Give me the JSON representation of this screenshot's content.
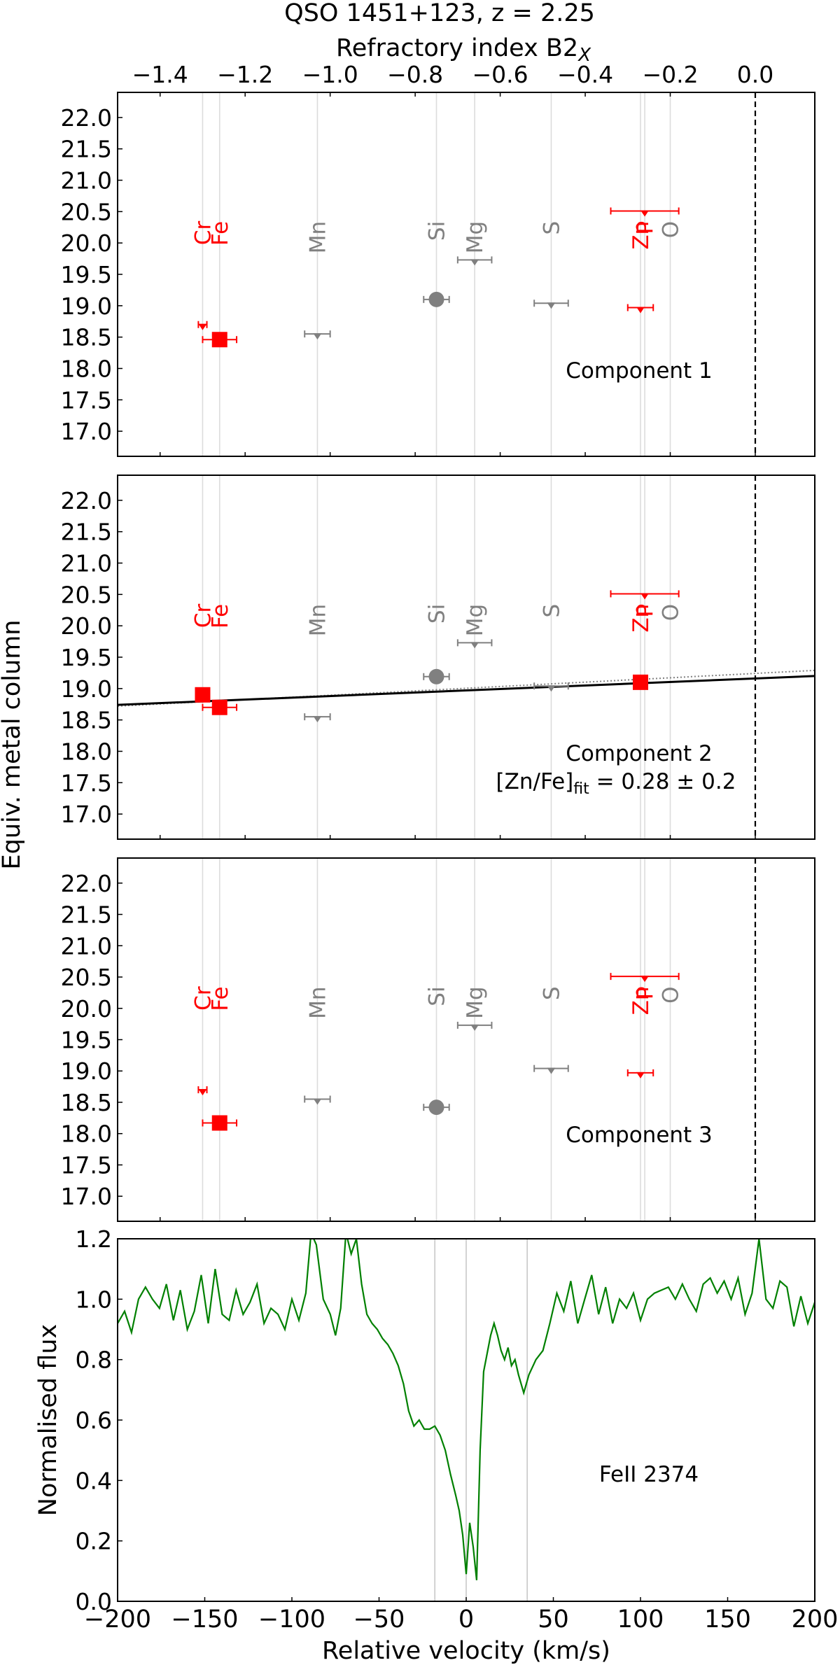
{
  "figure": {
    "title": "QSO 1451+123, z = 2.25",
    "top_axis_label": "Refractory index B2",
    "top_axis_label_sub": "X",
    "y_label_shared": "Equiv. metal column",
    "colors": {
      "depleted": "#ff0000",
      "other": "#808080",
      "flux": "#008000",
      "fit": "#000000",
      "fit_dotted": "#808080"
    }
  },
  "chart_data": [
    {
      "type": "scatter",
      "panel": "Component 1",
      "label": "Component 1",
      "x_axis": {
        "name": "Refractory index B2_X",
        "ticks": [
          -1.4,
          -1.2,
          -1.0,
          -0.8,
          -0.6,
          -0.4,
          -0.2,
          0.0
        ],
        "tick_labels": [
          "−1.4",
          "−1.2",
          "−1.0",
          "−0.8",
          "−0.6",
          "−0.4",
          "−0.2",
          "0.0"
        ],
        "range": [
          -1.5,
          0.14
        ]
      },
      "y_axis": {
        "ticks": [
          17.0,
          17.5,
          18.0,
          18.5,
          19.0,
          19.5,
          20.0,
          20.5,
          21.0,
          21.5,
          22.0
        ],
        "tick_labels": [
          "17.0",
          "17.5",
          "18.0",
          "18.5",
          "19.0",
          "19.5",
          "20.0",
          "20.5",
          "21.0",
          "21.5",
          "22.0"
        ],
        "range": [
          16.6,
          22.4
        ]
      },
      "element_lines": [
        {
          "name": "Cr",
          "x": -1.3,
          "color": "red"
        },
        {
          "name": "Fe",
          "x": -1.26,
          "color": "red"
        },
        {
          "name": "Mn",
          "x": -1.03,
          "color": "gray"
        },
        {
          "name": "Si",
          "x": -0.75,
          "color": "gray"
        },
        {
          "name": "Mg",
          "x": -0.66,
          "color": "gray"
        },
        {
          "name": "S",
          "x": -0.48,
          "color": "gray"
        },
        {
          "name": "Zn",
          "x": -0.27,
          "color": "red"
        },
        {
          "name": "P",
          "x": -0.26,
          "color": "red"
        },
        {
          "name": "O",
          "x": -0.2,
          "color": "gray"
        }
      ],
      "points": [
        {
          "element": "Cr",
          "x": -1.3,
          "y": 18.7,
          "marker": "upper-limit",
          "color": "red",
          "xerr": 0.01
        },
        {
          "element": "Fe",
          "x": -1.26,
          "y": 18.46,
          "marker": "square",
          "color": "red",
          "xerr": 0.04
        },
        {
          "element": "Mn",
          "x": -1.03,
          "y": 18.55,
          "marker": "upper-limit",
          "color": "gray",
          "xerr": 0.03
        },
        {
          "element": "Si",
          "x": -0.75,
          "y": 19.1,
          "marker": "circle",
          "color": "gray",
          "xerr": 0.03
        },
        {
          "element": "Mg",
          "x": -0.66,
          "y": 19.73,
          "marker": "upper-limit",
          "color": "gray",
          "xerr": 0.04
        },
        {
          "element": "S",
          "x": -0.48,
          "y": 19.04,
          "marker": "upper-limit",
          "color": "gray",
          "xerr": 0.04
        },
        {
          "element": "Zn",
          "x": -0.27,
          "y": 18.97,
          "marker": "upper-limit",
          "color": "red",
          "xerr": 0.03
        },
        {
          "element": "P",
          "x": -0.26,
          "y": 20.51,
          "marker": "upper-limit",
          "color": "red",
          "xerr": 0.08
        }
      ]
    },
    {
      "type": "scatter",
      "panel": "Component 2",
      "label": "Component 2",
      "fit_label": "[Zn/Fe]",
      "fit_label_sub": "fit",
      "fit_value": " = 0.28 ± 0.2",
      "x_axis": {
        "ticks": [
          -1.4,
          -1.2,
          -1.0,
          -0.8,
          -0.6,
          -0.4,
          -0.2,
          0.0
        ],
        "range": [
          -1.5,
          0.14
        ]
      },
      "y_axis": {
        "ticks": [
          17.0,
          17.5,
          18.0,
          18.5,
          19.0,
          19.5,
          20.0,
          20.5,
          21.0,
          21.5,
          22.0
        ],
        "tick_labels": [
          "17.0",
          "17.5",
          "18.0",
          "18.5",
          "19.0",
          "19.5",
          "20.0",
          "20.5",
          "21.0",
          "21.5",
          "22.0"
        ],
        "range": [
          16.6,
          22.4
        ]
      },
      "fit_line": {
        "x": [
          -1.5,
          0.14
        ],
        "y": [
          18.74,
          19.2
        ]
      },
      "fit_line_dotted": {
        "x": [
          -1.5,
          0.14
        ],
        "y": [
          18.72,
          19.29
        ]
      },
      "points": [
        {
          "element": "Cr",
          "x": -1.3,
          "y": 18.9,
          "marker": "square",
          "color": "red",
          "xerr": 0.01
        },
        {
          "element": "Fe",
          "x": -1.26,
          "y": 18.7,
          "marker": "square",
          "color": "red",
          "xerr": 0.04
        },
        {
          "element": "Mn",
          "x": -1.03,
          "y": 18.55,
          "marker": "upper-limit",
          "color": "gray",
          "xerr": 0.03
        },
        {
          "element": "Si",
          "x": -0.75,
          "y": 19.19,
          "marker": "circle",
          "color": "gray",
          "xerr": 0.03
        },
        {
          "element": "Mg",
          "x": -0.66,
          "y": 19.73,
          "marker": "upper-limit",
          "color": "gray",
          "xerr": 0.04
        },
        {
          "element": "S",
          "x": -0.48,
          "y": 19.04,
          "marker": "upper-limit",
          "color": "gray",
          "xerr": 0.04
        },
        {
          "element": "Zn",
          "x": -0.27,
          "y": 19.1,
          "marker": "square",
          "color": "red",
          "xerr": 0.01
        },
        {
          "element": "P",
          "x": -0.26,
          "y": 20.51,
          "marker": "upper-limit",
          "color": "red",
          "xerr": 0.08
        }
      ]
    },
    {
      "type": "scatter",
      "panel": "Component 3",
      "label": "Component 3",
      "x_axis": {
        "ticks": [
          -1.4,
          -1.2,
          -1.0,
          -0.8,
          -0.6,
          -0.4,
          -0.2,
          0.0
        ],
        "range": [
          -1.5,
          0.14
        ]
      },
      "y_axis": {
        "ticks": [
          17.0,
          17.5,
          18.0,
          18.5,
          19.0,
          19.5,
          20.0,
          20.5,
          21.0,
          21.5,
          22.0
        ],
        "tick_labels": [
          "17.0",
          "17.5",
          "18.0",
          "18.5",
          "19.0",
          "19.5",
          "20.0",
          "20.5",
          "21.0",
          "21.5",
          "22.0"
        ],
        "range": [
          16.6,
          22.4
        ]
      },
      "points": [
        {
          "element": "Cr",
          "x": -1.3,
          "y": 18.7,
          "marker": "upper-limit",
          "color": "red",
          "xerr": 0.01
        },
        {
          "element": "Fe",
          "x": -1.26,
          "y": 18.17,
          "marker": "square",
          "color": "red",
          "xerr": 0.04
        },
        {
          "element": "Mn",
          "x": -1.03,
          "y": 18.55,
          "marker": "upper-limit",
          "color": "gray",
          "xerr": 0.03
        },
        {
          "element": "Si",
          "x": -0.75,
          "y": 18.42,
          "marker": "circle",
          "color": "gray",
          "xerr": 0.03
        },
        {
          "element": "Mg",
          "x": -0.66,
          "y": 19.73,
          "marker": "upper-limit",
          "color": "gray",
          "xerr": 0.04
        },
        {
          "element": "S",
          "x": -0.48,
          "y": 19.04,
          "marker": "upper-limit",
          "color": "gray",
          "xerr": 0.04
        },
        {
          "element": "Zn",
          "x": -0.27,
          "y": 18.97,
          "marker": "upper-limit",
          "color": "red",
          "xerr": 0.03
        },
        {
          "element": "P",
          "x": -0.26,
          "y": 20.51,
          "marker": "upper-limit",
          "color": "red",
          "xerr": 0.08
        }
      ]
    },
    {
      "type": "line",
      "panel": "FeII 2374",
      "label": "FeII 2374",
      "xlabel": "Relative velocity (km/s)",
      "ylabel": "Normalised flux",
      "x_axis": {
        "ticks": [
          -200,
          -150,
          -100,
          -50,
          0,
          50,
          100,
          150,
          200
        ],
        "tick_labels": [
          "−200",
          "−150",
          "−100",
          "−50",
          "0",
          "50",
          "100",
          "150",
          "200"
        ],
        "range": [
          -200,
          200
        ]
      },
      "y_axis": {
        "ticks": [
          0.0,
          0.2,
          0.4,
          0.6,
          0.8,
          1.0,
          1.2
        ],
        "tick_labels": [
          "0.0",
          "0.2",
          "0.4",
          "0.6",
          "0.8",
          "1.0",
          "1.2"
        ],
        "range": [
          0.0,
          1.2
        ]
      },
      "component_lines_x": [
        -18,
        0,
        35
      ],
      "series": [
        {
          "x": [
            -200,
            -196,
            -192,
            -188,
            -184,
            -180,
            -176,
            -172,
            -168,
            -164,
            -160,
            -156,
            -152,
            -148,
            -144,
            -140,
            -136,
            -132,
            -128,
            -124,
            -120,
            -116,
            -112,
            -108,
            -104,
            -100,
            -96,
            -92,
            -89,
            -86,
            -82,
            -78,
            -75,
            -72,
            -69,
            -66,
            -63,
            -60,
            -57,
            -54,
            -51,
            -48,
            -45,
            -42,
            -39,
            -36,
            -33,
            -30,
            -27,
            -24,
            -21,
            -18,
            -15,
            -12,
            -9,
            -6,
            -4,
            -2,
            0,
            2,
            4,
            6,
            8,
            10,
            12,
            14,
            16,
            18,
            20,
            22,
            24,
            26,
            28,
            30,
            33,
            36,
            40,
            44,
            48,
            52,
            56,
            60,
            64,
            68,
            72,
            76,
            80,
            84,
            88,
            92,
            96,
            100,
            104,
            108,
            112,
            116,
            120,
            124,
            128,
            132,
            136,
            140,
            144,
            148,
            152,
            156,
            160,
            164,
            168,
            172,
            176,
            180,
            184,
            188,
            192,
            196,
            200
          ],
          "y": [
            0.92,
            0.96,
            0.89,
            1.0,
            1.04,
            1.0,
            0.97,
            1.05,
            0.93,
            1.03,
            0.9,
            0.96,
            1.08,
            0.92,
            1.1,
            0.95,
            0.93,
            1.03,
            0.95,
            0.99,
            1.05,
            0.92,
            0.97,
            0.95,
            0.9,
            1.0,
            0.93,
            1.02,
            1.22,
            1.18,
            1.0,
            0.95,
            0.88,
            0.97,
            1.22,
            1.15,
            1.2,
            1.05,
            0.95,
            0.92,
            0.9,
            0.87,
            0.85,
            0.82,
            0.78,
            0.72,
            0.63,
            0.58,
            0.6,
            0.57,
            0.57,
            0.58,
            0.55,
            0.5,
            0.42,
            0.35,
            0.3,
            0.22,
            0.09,
            0.26,
            0.18,
            0.07,
            0.5,
            0.76,
            0.82,
            0.88,
            0.92,
            0.88,
            0.83,
            0.8,
            0.84,
            0.78,
            0.8,
            0.75,
            0.69,
            0.75,
            0.8,
            0.83,
            0.92,
            1.02,
            0.96,
            1.06,
            0.92,
            1.0,
            1.08,
            0.95,
            1.04,
            0.92,
            1.0,
            0.97,
            1.02,
            0.93,
            1.0,
            1.02,
            1.03,
            1.04,
            1.0,
            1.05,
            1.0,
            0.96,
            1.05,
            1.07,
            1.02,
            1.06,
            1.0,
            1.07,
            0.95,
            1.02,
            1.2,
            1.0,
            0.97,
            1.06,
            1.04,
            0.91,
            1.01,
            0.92,
            0.99
          ]
        }
      ]
    }
  ]
}
